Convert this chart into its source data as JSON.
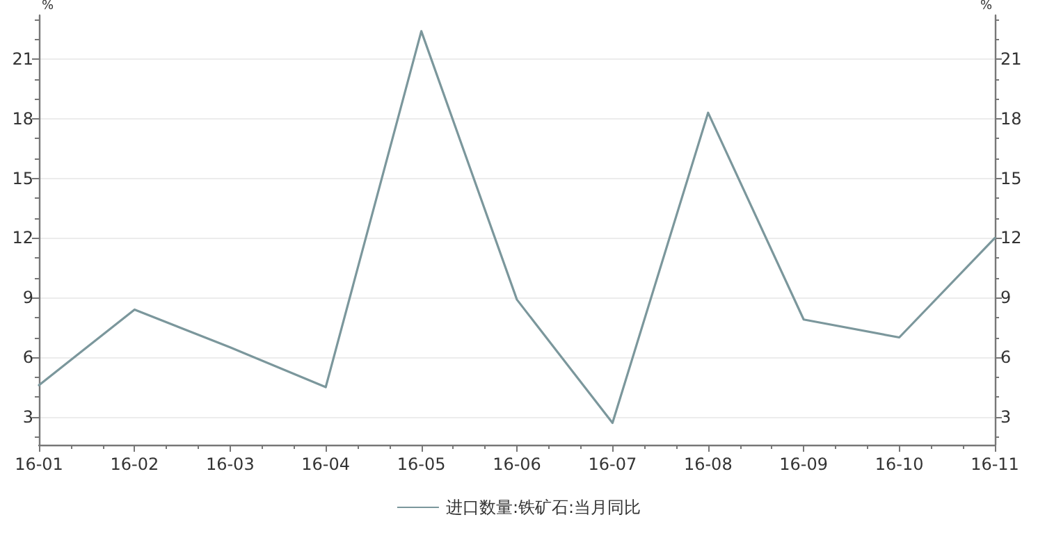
{
  "chart_data": {
    "type": "line",
    "ylabel": "%",
    "y2label": "%",
    "categories": [
      "16-01",
      "16-02",
      "16-03",
      "16-04",
      "16-05",
      "16-06",
      "16-07",
      "16-08",
      "16-09",
      "16-10",
      "16-11"
    ],
    "series": [
      {
        "name": "进口数量:铁矿石:当月同比",
        "color": "#7b979c",
        "values": [
          4.6,
          8.4,
          6.5,
          4.5,
          22.4,
          8.9,
          2.7,
          18.3,
          7.9,
          7.0,
          12.0
        ]
      }
    ],
    "ylim": [
      1.6,
      23.2
    ],
    "yticks": [
      {
        "value": 2,
        "label": null
      },
      3,
      {
        "value": 4,
        "label": null
      },
      {
        "value": 5,
        "label": null
      },
      6,
      {
        "value": 7,
        "label": null
      },
      {
        "value": 8,
        "label": null
      },
      9,
      {
        "value": 10,
        "label": null
      },
      {
        "value": 11,
        "label": null
      },
      12,
      {
        "value": 13,
        "label": null
      },
      {
        "value": 14,
        "label": null
      },
      15,
      {
        "value": 16,
        "label": null
      },
      {
        "value": 17,
        "label": null
      },
      18,
      {
        "value": 19,
        "label": null
      },
      {
        "value": 20,
        "label": null
      },
      21,
      {
        "value": 22,
        "label": null
      },
      {
        "value": 23,
        "label": null
      }
    ],
    "y2lim": [
      1.6,
      23.2
    ],
    "y2ticks": [
      {
        "value": 2,
        "label": null
      },
      3,
      {
        "value": 4,
        "label": null
      },
      {
        "value": 5,
        "label": null
      },
      6,
      {
        "value": 7,
        "label": null
      },
      {
        "value": 8,
        "label": null
      },
      9,
      {
        "value": 10,
        "label": null
      },
      {
        "value": 11,
        "label": null
      },
      12,
      {
        "value": 13,
        "label": null
      },
      {
        "value": 14,
        "label": null
      },
      15,
      {
        "value": 16,
        "label": null
      },
      {
        "value": 17,
        "label": null
      },
      18,
      {
        "value": 19,
        "label": null
      },
      {
        "value": 20,
        "label": null
      },
      21,
      {
        "value": 22,
        "label": null
      },
      {
        "value": 23,
        "label": null
      }
    ],
    "grid": "y",
    "legend": "bottom",
    "marker": "none",
    "line_style": "solid"
  }
}
